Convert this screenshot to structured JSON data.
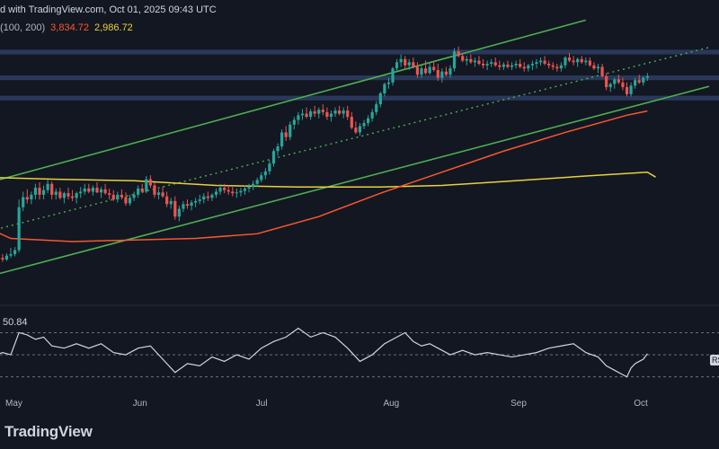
{
  "header": {
    "published": "d with TradingView.com, Oct 01, 2025 09:43 UTC",
    "ma_label": "(100, 200)",
    "ma100_value": "3,834.72",
    "ma200_value": "2,986.72"
  },
  "colors": {
    "background": "#131722",
    "bull": "#26a69a",
    "bear": "#ef5350",
    "channel": "#4caf50",
    "ma100": "#f7582e",
    "ma200": "#e8d13a",
    "zones": "#2a3a5e",
    "rsi": "#d1d4dc"
  },
  "rsi_value": "50.84",
  "rsi_tag": "RSI",
  "months": [
    {
      "label": "May",
      "x": 0
    },
    {
      "label": "Jun",
      "x": 31
    },
    {
      "label": "Jul",
      "x": 61
    },
    {
      "label": "Aug",
      "x": 92
    },
    {
      "label": "Sep",
      "x": 123
    },
    {
      "label": "Oct",
      "x": 153
    }
  ],
  "logo": "TradingView",
  "chart_data": {
    "type": "candlestick",
    "x_unit": "days since May 1, 2025",
    "ylim": [
      1400,
      5200
    ],
    "resistance_zones": [
      [
        4560,
        4620
      ],
      [
        4230,
        4290
      ],
      [
        3970,
        4030
      ]
    ],
    "channel_upper": [
      [
        -10,
        2850
      ],
      [
        140,
        5000
      ]
    ],
    "channel_lower": [
      [
        -10,
        1650
      ],
      [
        170,
        4150
      ]
    ],
    "channel_mid": [
      [
        -10,
        2230
      ],
      [
        170,
        4650
      ]
    ],
    "ma100": [
      [
        -10,
        2440
      ],
      [
        0,
        2200
      ],
      [
        15,
        2160
      ],
      [
        30,
        2180
      ],
      [
        45,
        2200
      ],
      [
        60,
        2260
      ],
      [
        75,
        2480
      ],
      [
        90,
        2780
      ],
      [
        105,
        3050
      ],
      [
        120,
        3320
      ],
      [
        135,
        3560
      ],
      [
        150,
        3780
      ],
      [
        155,
        3834
      ]
    ],
    "ma200": [
      [
        -10,
        2990
      ],
      [
        10,
        2960
      ],
      [
        30,
        2940
      ],
      [
        50,
        2880
      ],
      [
        70,
        2860
      ],
      [
        90,
        2860
      ],
      [
        105,
        2880
      ],
      [
        120,
        2930
      ],
      [
        140,
        3000
      ],
      [
        155,
        3050
      ],
      [
        157,
        2987
      ]
    ],
    "candles": [
      [
        -8,
        1910,
        1980,
        1860,
        1900
      ],
      [
        -7,
        1900,
        1960,
        1860,
        1930
      ],
      [
        -6,
        1930,
        1970,
        1880,
        1890
      ],
      [
        -5,
        1890,
        1940,
        1860,
        1910
      ],
      [
        -4,
        1910,
        1950,
        1870,
        1920
      ],
      [
        -3,
        1920,
        1990,
        1880,
        1950
      ],
      [
        -2,
        1950,
        2000,
        1900,
        1930
      ],
      [
        -1,
        1930,
        2010,
        1910,
        1980
      ],
      [
        0,
        1980,
        2080,
        1950,
        2000
      ],
      [
        1,
        2000,
        2090,
        1970,
        2050
      ],
      [
        2,
        2050,
        2700,
        2020,
        2600
      ],
      [
        3,
        2600,
        2800,
        2550,
        2730
      ],
      [
        4,
        2730,
        2830,
        2650,
        2700
      ],
      [
        5,
        2700,
        2800,
        2640,
        2760
      ],
      [
        6,
        2760,
        2900,
        2700,
        2850
      ],
      [
        7,
        2850,
        2920,
        2700,
        2760
      ],
      [
        8,
        2760,
        2880,
        2700,
        2820
      ],
      [
        9,
        2820,
        2950,
        2780,
        2900
      ],
      [
        10,
        2900,
        2930,
        2700,
        2760
      ],
      [
        11,
        2760,
        2840,
        2700,
        2800
      ],
      [
        12,
        2800,
        2850,
        2700,
        2720
      ],
      [
        13,
        2720,
        2800,
        2650,
        2780
      ],
      [
        14,
        2780,
        2850,
        2700,
        2740
      ],
      [
        15,
        2740,
        2820,
        2680,
        2720
      ],
      [
        16,
        2720,
        2800,
        2650,
        2780
      ],
      [
        17,
        2780,
        2860,
        2720,
        2800
      ],
      [
        18,
        2800,
        2900,
        2760,
        2840
      ],
      [
        19,
        2840,
        2900,
        2780,
        2800
      ],
      [
        20,
        2800,
        2880,
        2750,
        2850
      ],
      [
        21,
        2850,
        2920,
        2780,
        2790
      ],
      [
        22,
        2790,
        2860,
        2720,
        2830
      ],
      [
        23,
        2830,
        2900,
        2760,
        2780
      ],
      [
        24,
        2780,
        2840,
        2700,
        2760
      ],
      [
        25,
        2760,
        2820,
        2680,
        2700
      ],
      [
        26,
        2700,
        2800,
        2660,
        2760
      ],
      [
        27,
        2760,
        2830,
        2700,
        2730
      ],
      [
        28,
        2730,
        2790,
        2620,
        2650
      ],
      [
        29,
        2650,
        2760,
        2620,
        2720
      ],
      [
        30,
        2720,
        2800,
        2680,
        2760
      ],
      [
        31,
        2760,
        2880,
        2720,
        2840
      ],
      [
        32,
        2840,
        2900,
        2780,
        2800
      ],
      [
        33,
        2800,
        3000,
        2780,
        2960
      ],
      [
        34,
        2960,
        3010,
        2850,
        2880
      ],
      [
        35,
        2880,
        2920,
        2720,
        2760
      ],
      [
        36,
        2760,
        2830,
        2700,
        2790
      ],
      [
        37,
        2790,
        2860,
        2720,
        2740
      ],
      [
        38,
        2740,
        2800,
        2600,
        2640
      ],
      [
        39,
        2640,
        2720,
        2580,
        2680
      ],
      [
        40,
        2680,
        2740,
        2440,
        2480
      ],
      [
        41,
        2480,
        2620,
        2420,
        2580
      ],
      [
        42,
        2580,
        2680,
        2540,
        2640
      ],
      [
        43,
        2640,
        2700,
        2580,
        2620
      ],
      [
        44,
        2620,
        2690,
        2560,
        2660
      ],
      [
        45,
        2660,
        2720,
        2600,
        2680
      ],
      [
        46,
        2680,
        2760,
        2640,
        2700
      ],
      [
        47,
        2700,
        2780,
        2650,
        2740
      ],
      [
        48,
        2740,
        2800,
        2680,
        2720
      ],
      [
        49,
        2720,
        2780,
        2680,
        2760
      ],
      [
        50,
        2760,
        2840,
        2720,
        2800
      ],
      [
        51,
        2800,
        2900,
        2760,
        2850
      ],
      [
        52,
        2850,
        2900,
        2780,
        2820
      ],
      [
        53,
        2820,
        2880,
        2760,
        2800
      ],
      [
        54,
        2800,
        2860,
        2740,
        2780
      ],
      [
        55,
        2780,
        2840,
        2720,
        2790
      ],
      [
        56,
        2790,
        2850,
        2740,
        2810
      ],
      [
        57,
        2810,
        2880,
        2760,
        2840
      ],
      [
        58,
        2840,
        2900,
        2790,
        2860
      ],
      [
        59,
        2860,
        2940,
        2820,
        2900
      ],
      [
        60,
        2900,
        2980,
        2860,
        2950
      ],
      [
        61,
        2950,
        3050,
        2920,
        3010
      ],
      [
        62,
        3010,
        3100,
        2960,
        3060
      ],
      [
        63,
        3060,
        3200,
        3020,
        3160
      ],
      [
        64,
        3160,
        3350,
        3120,
        3320
      ],
      [
        65,
        3320,
        3420,
        3260,
        3380
      ],
      [
        66,
        3380,
        3600,
        3340,
        3560
      ],
      [
        67,
        3560,
        3640,
        3450,
        3500
      ],
      [
        68,
        3500,
        3700,
        3460,
        3660
      ],
      [
        69,
        3660,
        3760,
        3600,
        3720
      ],
      [
        70,
        3720,
        3820,
        3660,
        3780
      ],
      [
        71,
        3780,
        3860,
        3720,
        3800
      ],
      [
        72,
        3800,
        3880,
        3740,
        3760
      ],
      [
        73,
        3760,
        3860,
        3720,
        3830
      ],
      [
        74,
        3830,
        3900,
        3760,
        3800
      ],
      [
        75,
        3800,
        3880,
        3740,
        3850
      ],
      [
        76,
        3850,
        3920,
        3780,
        3820
      ],
      [
        77,
        3820,
        3880,
        3720,
        3760
      ],
      [
        78,
        3760,
        3840,
        3700,
        3800
      ],
      [
        79,
        3800,
        3880,
        3760,
        3840
      ],
      [
        80,
        3840,
        3900,
        3780,
        3800
      ],
      [
        81,
        3800,
        3880,
        3740,
        3840
      ],
      [
        82,
        3840,
        3900,
        3720,
        3760
      ],
      [
        83,
        3760,
        3820,
        3600,
        3620
      ],
      [
        84,
        3620,
        3700,
        3540,
        3560
      ],
      [
        85,
        3560,
        3680,
        3520,
        3640
      ],
      [
        86,
        3640,
        3720,
        3600,
        3680
      ],
      [
        87,
        3680,
        3780,
        3640,
        3740
      ],
      [
        88,
        3740,
        3860,
        3700,
        3820
      ],
      [
        89,
        3820,
        3960,
        3780,
        3920
      ],
      [
        90,
        3920,
        4080,
        3880,
        4060
      ],
      [
        91,
        4060,
        4200,
        4020,
        4180
      ],
      [
        92,
        4180,
        4260,
        4120,
        4200
      ],
      [
        93,
        4200,
        4400,
        4160,
        4380
      ],
      [
        94,
        4380,
        4500,
        4340,
        4460
      ],
      [
        95,
        4460,
        4560,
        4400,
        4500
      ],
      [
        96,
        4500,
        4540,
        4380,
        4420
      ],
      [
        97,
        4420,
        4500,
        4360,
        4460
      ],
      [
        98,
        4460,
        4520,
        4380,
        4400
      ],
      [
        99,
        4400,
        4460,
        4260,
        4300
      ],
      [
        100,
        4300,
        4420,
        4260,
        4380
      ],
      [
        101,
        4380,
        4480,
        4300,
        4320
      ],
      [
        102,
        4320,
        4460,
        4300,
        4400
      ],
      [
        103,
        4400,
        4480,
        4340,
        4360
      ],
      [
        104,
        4360,
        4440,
        4220,
        4260
      ],
      [
        105,
        4260,
        4380,
        4200,
        4340
      ],
      [
        106,
        4340,
        4400,
        4280,
        4300
      ],
      [
        107,
        4300,
        4420,
        4260,
        4380
      ],
      [
        108,
        4380,
        4640,
        4340,
        4600
      ],
      [
        109,
        4600,
        4660,
        4520,
        4540
      ],
      [
        110,
        4540,
        4580,
        4460,
        4480
      ],
      [
        111,
        4480,
        4540,
        4420,
        4500
      ],
      [
        112,
        4500,
        4560,
        4440,
        4460
      ],
      [
        113,
        4460,
        4520,
        4400,
        4480
      ],
      [
        114,
        4480,
        4540,
        4420,
        4440
      ],
      [
        115,
        4440,
        4500,
        4380,
        4420
      ],
      [
        116,
        4420,
        4480,
        4360,
        4440
      ],
      [
        117,
        4440,
        4500,
        4400,
        4460
      ],
      [
        118,
        4460,
        4520,
        4400,
        4420
      ],
      [
        119,
        4420,
        4480,
        4360,
        4400
      ],
      [
        120,
        4400,
        4460,
        4360,
        4430
      ],
      [
        121,
        4430,
        4480,
        4380,
        4400
      ],
      [
        122,
        4400,
        4460,
        4360,
        4420
      ],
      [
        123,
        4420,
        4480,
        4380,
        4440
      ],
      [
        124,
        4440,
        4500,
        4380,
        4400
      ],
      [
        125,
        4400,
        4460,
        4340,
        4380
      ],
      [
        126,
        4380,
        4440,
        4340,
        4420
      ],
      [
        127,
        4420,
        4480,
        4360,
        4440
      ],
      [
        128,
        4440,
        4500,
        4380,
        4460
      ],
      [
        129,
        4460,
        4520,
        4420,
        4480
      ],
      [
        130,
        4480,
        4540,
        4420,
        4440
      ],
      [
        131,
        4440,
        4480,
        4380,
        4420
      ],
      [
        132,
        4420,
        4460,
        4360,
        4400
      ],
      [
        133,
        4400,
        4440,
        4340,
        4380
      ],
      [
        134,
        4380,
        4460,
        4340,
        4420
      ],
      [
        135,
        4420,
        4540,
        4380,
        4520
      ],
      [
        136,
        4520,
        4580,
        4460,
        4480
      ],
      [
        137,
        4480,
        4540,
        4420,
        4460
      ],
      [
        138,
        4460,
        4520,
        4400,
        4500
      ],
      [
        139,
        4500,
        4540,
        4440,
        4460
      ],
      [
        140,
        4460,
        4520,
        4420,
        4480
      ],
      [
        141,
        4480,
        4520,
        4400,
        4420
      ],
      [
        142,
        4420,
        4460,
        4360,
        4380
      ],
      [
        143,
        4380,
        4440,
        4320,
        4400
      ],
      [
        144,
        4400,
        4440,
        4260,
        4280
      ],
      [
        145,
        4280,
        4320,
        4100,
        4140
      ],
      [
        146,
        4140,
        4200,
        4080,
        4180
      ],
      [
        147,
        4180,
        4260,
        4120,
        4240
      ],
      [
        148,
        4240,
        4300,
        4180,
        4200
      ],
      [
        149,
        4200,
        4260,
        4100,
        4140
      ],
      [
        150,
        4140,
        4200,
        4020,
        4050
      ],
      [
        151,
        4050,
        4200,
        4020,
        4160
      ],
      [
        152,
        4160,
        4260,
        4120,
        4230
      ],
      [
        153,
        4230,
        4300,
        4180,
        4200
      ],
      [
        154,
        4200,
        4280,
        4160,
        4260
      ],
      [
        155,
        4260,
        4320,
        4220,
        4280
      ]
    ],
    "rsi": {
      "ylim": [
        20,
        85
      ],
      "levels": [
        70,
        50,
        30
      ],
      "values": [
        [
          -10,
          50
        ],
        [
          -5,
          48
        ],
        [
          -2,
          52
        ],
        [
          0,
          50
        ],
        [
          2,
          70
        ],
        [
          4,
          68
        ],
        [
          6,
          64
        ],
        [
          8,
          66
        ],
        [
          10,
          58
        ],
        [
          13,
          56
        ],
        [
          16,
          60
        ],
        [
          19,
          56
        ],
        [
          22,
          60
        ],
        [
          25,
          52
        ],
        [
          28,
          50
        ],
        [
          31,
          56
        ],
        [
          34,
          58
        ],
        [
          37,
          46
        ],
        [
          40,
          34
        ],
        [
          43,
          42
        ],
        [
          46,
          40
        ],
        [
          49,
          48
        ],
        [
          52,
          44
        ],
        [
          55,
          50
        ],
        [
          58,
          46
        ],
        [
          61,
          56
        ],
        [
          64,
          62
        ],
        [
          67,
          66
        ],
        [
          70,
          74
        ],
        [
          73,
          66
        ],
        [
          76,
          70
        ],
        [
          79,
          66
        ],
        [
          82,
          56
        ],
        [
          85,
          44
        ],
        [
          88,
          50
        ],
        [
          91,
          60
        ],
        [
          94,
          66
        ],
        [
          96,
          70
        ],
        [
          98,
          62
        ],
        [
          100,
          58
        ],
        [
          102,
          60
        ],
        [
          104,
          56
        ],
        [
          107,
          50
        ],
        [
          110,
          54
        ],
        [
          113,
          50
        ],
        [
          116,
          52
        ],
        [
          119,
          50
        ],
        [
          122,
          48
        ],
        [
          125,
          50
        ],
        [
          128,
          52
        ],
        [
          131,
          56
        ],
        [
          134,
          58
        ],
        [
          137,
          60
        ],
        [
          140,
          52
        ],
        [
          143,
          48
        ],
        [
          145,
          40
        ],
        [
          147,
          36
        ],
        [
          149,
          32
        ],
        [
          150,
          30
        ],
        [
          151,
          38
        ],
        [
          152,
          42
        ],
        [
          153,
          44
        ],
        [
          154,
          46
        ],
        [
          155,
          51
        ]
      ]
    }
  }
}
